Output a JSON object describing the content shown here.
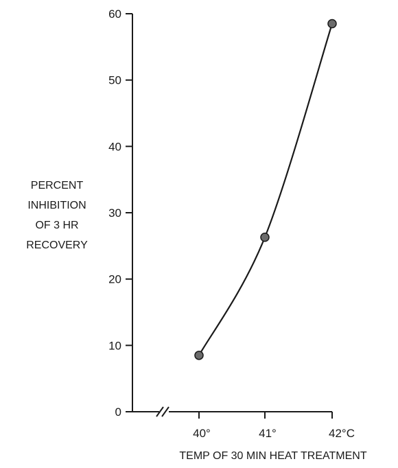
{
  "chart_data": {
    "type": "line",
    "title": "",
    "xlabel": "TEMP OF 30 MIN HEAT TREATMENT",
    "ylabel_lines": [
      "PERCENT",
      "INHIBITION",
      "OF 3 HR",
      "RECOVERY"
    ],
    "x_categories": [
      "40°",
      "41°",
      "42°C"
    ],
    "y_ticks": [
      "0",
      "10",
      "20",
      "30",
      "40",
      "50",
      "60"
    ],
    "ylim": [
      0,
      60
    ],
    "series": [
      {
        "values": [
          8.5,
          26.3,
          58.5
        ]
      }
    ],
    "grid": false,
    "axis_break": true,
    "smooth_curve": true
  }
}
